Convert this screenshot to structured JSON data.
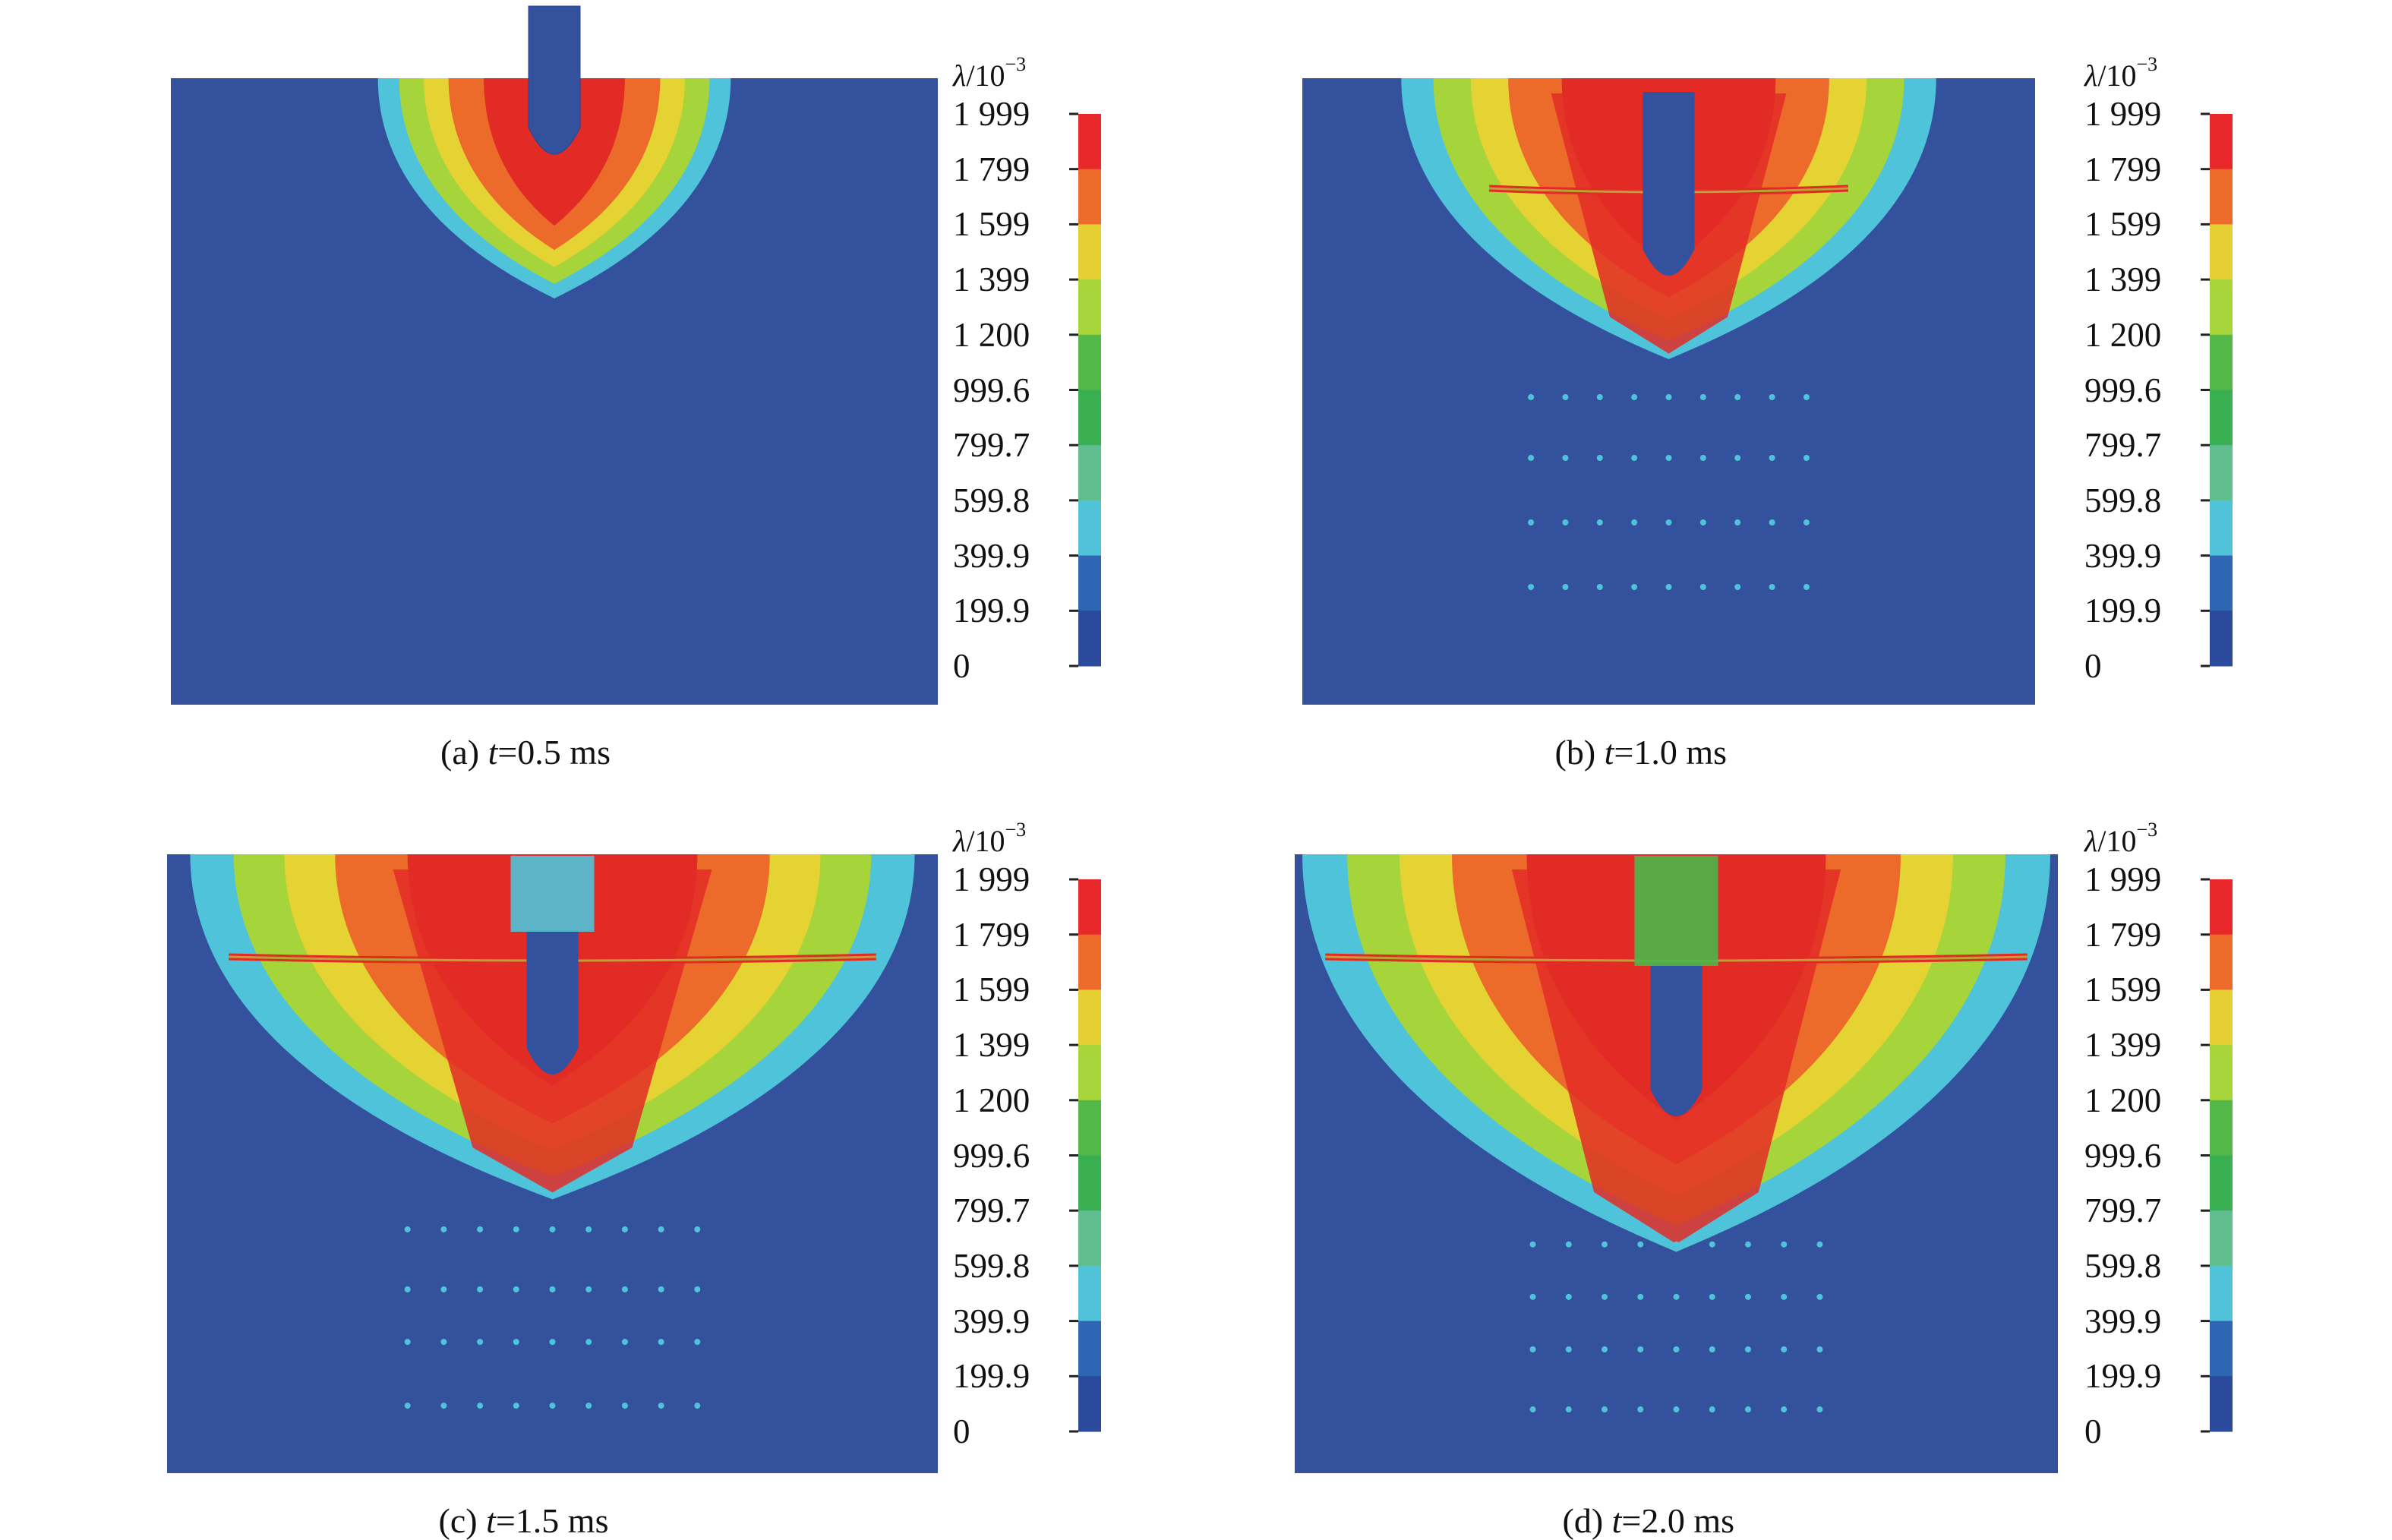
{
  "colorbar": {
    "symbol": "λ",
    "unit_rest": "/10",
    "unit_exp": "−3",
    "ticks": [
      "1 999",
      "1 799",
      "1 599",
      "1 399",
      "1 200",
      "999.6",
      "799.7",
      "599.8",
      "399.9",
      "199.9",
      "0"
    ],
    "colors_top_to_bottom": [
      "#e8282a",
      "#ec6a2a",
      "#e6cf32",
      "#a8d43c",
      "#52b848",
      "#3aaf52",
      "#5fbd8e",
      "#50c2da",
      "#2f66b4",
      "#2b4a9c"
    ]
  },
  "colors": {
    "background_blue": "#33519c",
    "red": "#e32b26",
    "orange": "#ec6a2a",
    "yellow": "#e5d233",
    "lime": "#a6d43b",
    "green": "#4bb64a",
    "cyan": "#4fc3d9"
  },
  "panels": [
    {
      "caption_prefix": "(a) ",
      "caption_var": "t",
      "caption_rest": "=0.5 ms"
    },
    {
      "caption_prefix": "(b) ",
      "caption_var": "t",
      "caption_rest": "=1.0 ms"
    },
    {
      "caption_prefix": "(c) ",
      "caption_var": "t",
      "caption_rest": "=1.5 ms"
    },
    {
      "caption_prefix": "(d) ",
      "caption_var": "t",
      "caption_rest": "=2.0 ms"
    }
  ]
}
